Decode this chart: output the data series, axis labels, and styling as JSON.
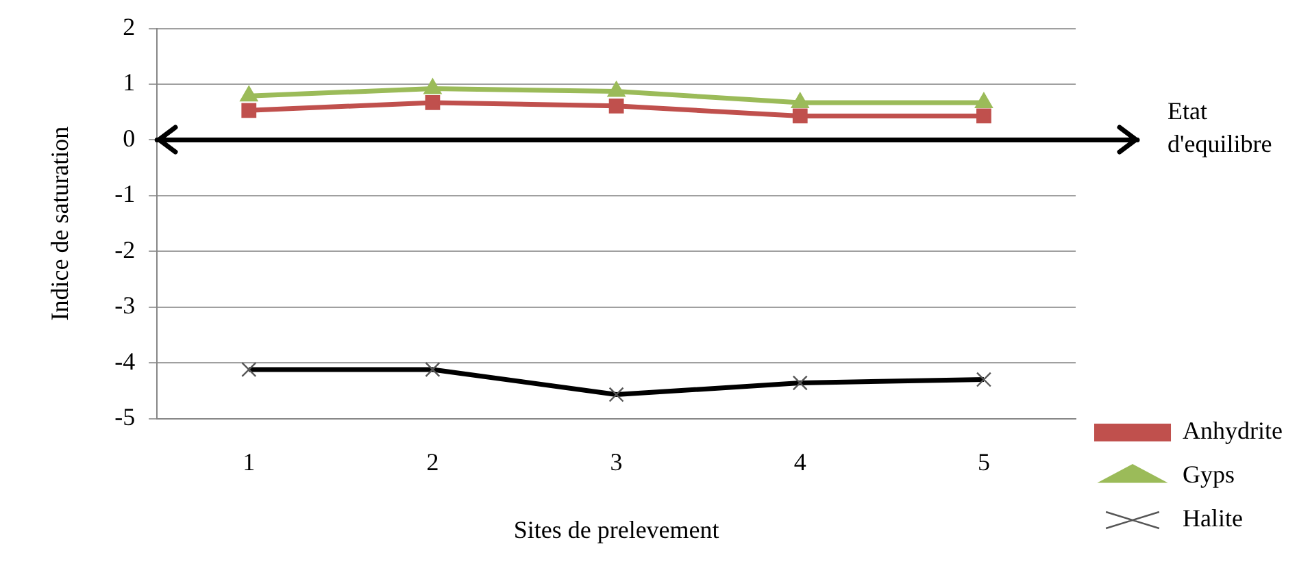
{
  "chart_data": {
    "type": "line",
    "xlabel": "Sites de prelevement",
    "ylabel": "Indice de saturation",
    "categories": [
      "1",
      "2",
      "3",
      "4",
      "5"
    ],
    "series": [
      {
        "name": "Anhydrite",
        "color": "#c0504d",
        "marker": "square",
        "values": [
          0.53,
          0.67,
          0.61,
          0.43,
          0.43
        ]
      },
      {
        "name": "Gyps",
        "color": "#9bbb59",
        "marker": "triangle",
        "values": [
          0.79,
          0.92,
          0.87,
          0.67,
          0.67
        ]
      },
      {
        "name": "Halite",
        "color": "#000000",
        "marker": "cross",
        "values": [
          -4.12,
          -4.12,
          -4.57,
          -4.36,
          -4.3
        ]
      }
    ],
    "ylim": [
      -5,
      2
    ],
    "yticks": [
      -5,
      -4,
      -3,
      -2,
      -1,
      0,
      1,
      2
    ],
    "grid": "y",
    "legend": "bottom right",
    "ref_lines": [
      {
        "axis": "y",
        "value": 0,
        "label": "Etat d'equilibre",
        "color": "#000000"
      }
    ]
  }
}
